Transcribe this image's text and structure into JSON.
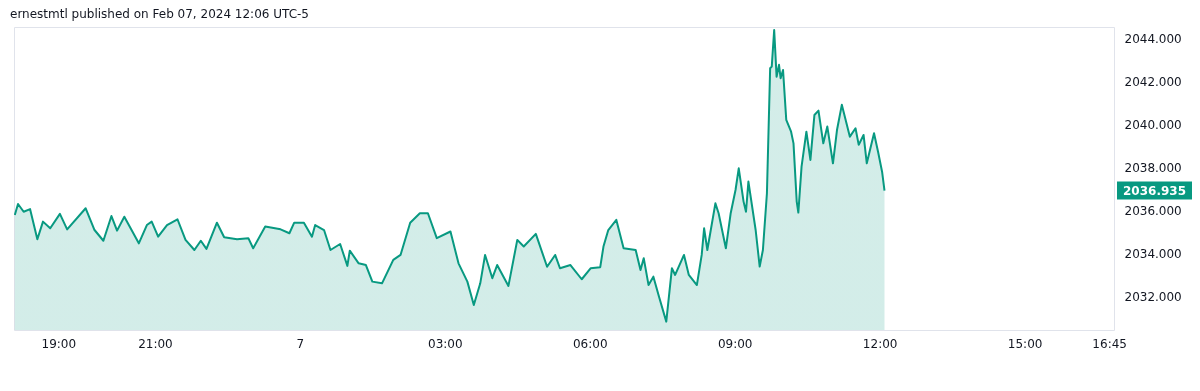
{
  "chart_data": {
    "type": "area",
    "title": "ernestmtl published on Feb 07, 2024 12:06 UTC-5",
    "x": [
      "2024-02-06T18:06",
      "2024-02-06T18:10",
      "2024-02-06T18:17",
      "2024-02-06T18:25",
      "2024-02-06T18:34",
      "2024-02-06T18:41",
      "2024-02-06T18:50",
      "2024-02-06T19:02",
      "2024-02-06T19:11",
      "2024-02-06T19:34",
      "2024-02-06T19:45",
      "2024-02-06T19:56",
      "2024-02-06T20:06",
      "2024-02-06T20:13",
      "2024-02-06T20:22",
      "2024-02-06T20:40",
      "2024-02-06T20:50",
      "2024-02-06T20:56",
      "2024-02-06T21:04",
      "2024-02-06T21:15",
      "2024-02-06T21:28",
      "2024-02-06T21:38",
      "2024-02-06T21:49",
      "2024-02-06T21:57",
      "2024-02-06T22:04",
      "2024-02-06T22:17",
      "2024-02-06T22:26",
      "2024-02-06T22:42",
      "2024-02-06T22:56",
      "2024-02-06T23:02",
      "2024-02-06T23:17",
      "2024-02-06T23:36",
      "2024-02-06T23:47",
      "2024-02-06T23:53",
      "2024-02-07T00:05",
      "2024-02-07T00:15",
      "2024-02-07T00:19",
      "2024-02-07T00:30",
      "2024-02-07T00:38",
      "2024-02-07T00:50",
      "2024-02-07T00:59",
      "2024-02-07T01:02",
      "2024-02-07T01:13",
      "2024-02-07T01:22",
      "2024-02-07T01:30",
      "2024-02-07T01:42",
      "2024-02-07T01:56",
      "2024-02-07T02:05",
      "2024-02-07T02:17",
      "2024-02-07T02:29",
      "2024-02-07T02:39",
      "2024-02-07T02:50",
      "2024-02-07T03:07",
      "2024-02-07T03:17",
      "2024-02-07T03:28",
      "2024-02-07T03:36",
      "2024-02-07T03:44",
      "2024-02-07T03:50",
      "2024-02-07T03:59",
      "2024-02-07T04:05",
      "2024-02-07T04:19",
      "2024-02-07T04:30",
      "2024-02-07T04:38",
      "2024-02-07T04:53",
      "2024-02-07T05:07",
      "2024-02-07T05:17",
      "2024-02-07T05:23",
      "2024-02-07T05:36",
      "2024-02-07T05:50",
      "2024-02-07T06:01",
      "2024-02-07T06:13",
      "2024-02-07T06:17",
      "2024-02-07T06:23",
      "2024-02-07T06:33",
      "2024-02-07T06:42",
      "2024-02-07T06:57",
      "2024-02-07T07:03",
      "2024-02-07T07:07",
      "2024-02-07T07:13",
      "2024-02-07T07:19",
      "2024-02-07T07:26",
      "2024-02-07T07:35",
      "2024-02-07T07:42",
      "2024-02-07T07:46",
      "2024-02-07T07:57",
      "2024-02-07T08:03",
      "2024-02-07T08:13",
      "2024-02-07T08:19",
      "2024-02-07T08:22",
      "2024-02-07T08:26",
      "2024-02-07T08:36",
      "2024-02-07T08:40",
      "2024-02-07T08:49",
      "2024-02-07T08:55",
      "2024-02-07T09:01",
      "2024-02-07T09:05",
      "2024-02-07T09:11",
      "2024-02-07T09:14",
      "2024-02-07T09:17",
      "2024-02-07T09:26",
      "2024-02-07T09:31",
      "2024-02-07T09:35",
      "2024-02-07T09:40",
      "2024-02-07T09:44",
      "2024-02-07T09:46",
      "2024-02-07T09:49",
      "2024-02-07T09:52",
      "2024-02-07T09:55",
      "2024-02-07T09:57",
      "2024-02-07T10:00",
      "2024-02-07T10:04",
      "2024-02-07T10:10",
      "2024-02-07T10:13",
      "2024-02-07T10:17",
      "2024-02-07T10:19",
      "2024-02-07T10:23",
      "2024-02-07T10:29",
      "2024-02-07T10:34",
      "2024-02-07T10:39",
      "2024-02-07T10:44",
      "2024-02-07T10:50",
      "2024-02-07T10:55",
      "2024-02-07T11:02",
      "2024-02-07T11:07",
      "2024-02-07T11:13",
      "2024-02-07T11:23",
      "2024-02-07T11:30",
      "2024-02-07T11:34",
      "2024-02-07T11:40",
      "2024-02-07T11:44",
      "2024-02-07T11:53",
      "2024-02-07T11:58",
      "2024-02-07T12:03",
      "2024-02-07T12:06"
    ],
    "series": [
      {
        "color": "#089981",
        "values": [
          2035.8,
          2036.31,
          2035.95,
          2036.07,
          2034.67,
          2035.49,
          2035.18,
          2035.85,
          2035.13,
          2036.11,
          2035.1,
          2034.6,
          2035.75,
          2035.07,
          2035.72,
          2034.48,
          2035.33,
          2035.49,
          2034.79,
          2035.33,
          2035.6,
          2034.64,
          2034.17,
          2034.6,
          2034.22,
          2035.44,
          2034.76,
          2034.67,
          2034.72,
          2034.25,
          2035.26,
          2035.13,
          2034.95,
          2035.44,
          2035.44,
          2034.79,
          2035.33,
          2035.1,
          2034.17,
          2034.45,
          2033.43,
          2034.14,
          2033.55,
          2033.47,
          2032.7,
          2032.62,
          2033.71,
          2033.94,
          2035.44,
          2035.88,
          2035.88,
          2034.72,
          2035.03,
          2033.55,
          2032.7,
          2031.61,
          2032.62,
          2033.94,
          2032.86,
          2033.47,
          2032.5,
          2034.64,
          2034.33,
          2034.92,
          2033.39,
          2033.94,
          2033.32,
          2033.47,
          2032.81,
          2033.32,
          2033.37,
          2034.33,
          2035.1,
          2035.57,
          2034.25,
          2034.17,
          2033.24,
          2033.79,
          2032.54,
          2032.93,
          2032.0,
          2030.84,
          2033.32,
          2033.01,
          2033.94,
          2033.01,
          2032.54,
          2033.94,
          2035.18,
          2034.17,
          2036.34,
          2035.88,
          2034.25,
          2035.88,
          2036.96,
          2037.97,
          2036.42,
          2035.95,
          2037.35,
          2035.1,
          2033.4,
          2034.17,
          2036.81,
          2042.62,
          2042.7,
          2044.4,
          2042.23,
          2042.78,
          2042.16,
          2042.54,
          2040.22,
          2039.67,
          2039.13,
          2036.42,
          2035.91,
          2038.05,
          2039.67,
          2038.36,
          2040.45,
          2040.65,
          2039.13,
          2039.91,
          2038.2,
          2039.75,
          2040.92,
          2039.44,
          2039.83,
          2039.06,
          2039.52,
          2038.2,
          2039.6,
          2038.74,
          2037.81,
          2036.935
        ]
      }
    ],
    "xlim": [
      "2024-02-06T18:05",
      "2024-02-07T16:51"
    ],
    "xticks": [
      {
        "value": "2024-02-06T19:00",
        "label": "19:00"
      },
      {
        "value": "2024-02-06T21:00",
        "label": "21:00"
      },
      {
        "value": "2024-02-07T00:00",
        "label": "7"
      },
      {
        "value": "2024-02-07T03:00",
        "label": "03:00"
      },
      {
        "value": "2024-02-07T06:00",
        "label": "06:00"
      },
      {
        "value": "2024-02-07T09:00",
        "label": "09:00"
      },
      {
        "value": "2024-02-07T12:00",
        "label": "12:00"
      },
      {
        "value": "2024-02-07T15:00",
        "label": "15:00"
      },
      {
        "value": "2024-02-07T16:45",
        "label": "16:45"
      }
    ],
    "ylim": [
      2030.45,
      2044.54
    ],
    "yticks": [
      {
        "value": 2032,
        "label": "2032.000"
      },
      {
        "value": 2034,
        "label": "2034.000"
      },
      {
        "value": 2036,
        "label": "2036.000"
      },
      {
        "value": 2038,
        "label": "2038.000"
      },
      {
        "value": 2040,
        "label": "2040.000"
      },
      {
        "value": 2042,
        "label": "2042.000"
      },
      {
        "value": 2044,
        "label": "2044.000"
      }
    ],
    "annotations": [
      "2036.935"
    ]
  }
}
